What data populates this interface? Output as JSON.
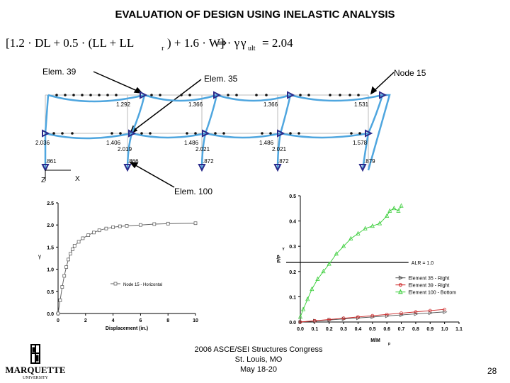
{
  "slide": {
    "title": "EVALUATION OF DESIGN USING INELASTIC ANALYSIS",
    "formula": {
      "lhs": "[1.2 · DL + 0.5 · (LL + LL",
      "lhs_sub": "r",
      "rhs": ") + 1.6 · W] · γ",
      "arrow": "⇒",
      "gamma": "γ",
      "gamma_sub": "ult",
      "result": "= 2.04"
    },
    "page_number": "28"
  },
  "frame": {
    "callouts": {
      "elem39": "Elem. 39",
      "elem35": "Elem. 35",
      "node15": "Node 15",
      "elem100": "Elem. 100"
    },
    "values": [
      "1.292",
      "1.366",
      "1.366",
      "1.531",
      "2.036",
      "1.406",
      "2.019",
      "1.486",
      "2.021",
      "1.486",
      "2.021",
      "1.578",
      ".861",
      ".866",
      ".872",
      ".872",
      ".879"
    ],
    "axes": {
      "z": "Z",
      "x": "X"
    }
  },
  "left_chart": {
    "chart_data": {
      "type": "line",
      "xlabel": "Displacement (in.)",
      "ylabel": "γ",
      "xlim": [
        0,
        10
      ],
      "ylim": [
        0.0,
        2.5
      ],
      "xticks": [
        "0",
        "2",
        "4",
        "6",
        "8",
        "10"
      ],
      "yticks": [
        "0.0",
        "0.5",
        "1.0",
        "1.5",
        "2.0",
        "2.5"
      ],
      "legend": "Node 15 - Horizontal",
      "legend_position": "bottom-right",
      "series": [
        {
          "name": "Node 15 - Horizontal",
          "x": [
            0,
            0.15,
            0.3,
            0.45,
            0.6,
            0.75,
            0.9,
            1.05,
            1.2,
            1.5,
            1.8,
            2.2,
            2.6,
            3.0,
            3.5,
            4.0,
            4.5,
            5.0,
            6.0,
            7.0,
            8.0,
            10.0
          ],
          "y": [
            0,
            0.3,
            0.6,
            0.85,
            1.05,
            1.22,
            1.35,
            1.45,
            1.53,
            1.62,
            1.7,
            1.77,
            1.83,
            1.88,
            1.92,
            1.95,
            1.97,
            1.98,
            2.0,
            2.02,
            2.03,
            2.04
          ]
        }
      ]
    }
  },
  "right_chart": {
    "chart_data": {
      "type": "line",
      "xlabel": "M/M",
      "xlabel_sub": "p",
      "ylabel": "P/P",
      "ylabel_sub": "Y",
      "xlim": [
        0.0,
        1.1
      ],
      "ylim": [
        0.0,
        0.5
      ],
      "xticks": [
        "0.0",
        "0.1",
        "0.2",
        "0.3",
        "0.4",
        "0.5",
        "0.6",
        "0.7",
        "0.8",
        "0.9",
        "1.0",
        "1.1"
      ],
      "yticks": [
        "0.0",
        "0.1",
        "0.2",
        "0.3",
        "0.4",
        "0.5"
      ],
      "annotation": "ALR = 1.0",
      "annotation_y": 0.236,
      "legend_position": "right",
      "series": [
        {
          "name": "Element 35 - Right",
          "color": "#555555",
          "x": [
            0.0,
            0.1,
            0.2,
            0.3,
            0.4,
            0.5,
            0.6,
            0.7,
            0.8,
            0.9,
            1.0
          ],
          "y": [
            0.0,
            0.004,
            0.008,
            0.012,
            0.016,
            0.02,
            0.024,
            0.028,
            0.032,
            0.036,
            0.04
          ]
        },
        {
          "name": "Element 39 - Right",
          "color": "#cc2222",
          "x": [
            0.0,
            0.1,
            0.2,
            0.3,
            0.4,
            0.5,
            0.6,
            0.7,
            0.8,
            0.9,
            1.0
          ],
          "y": [
            0.0,
            0.005,
            0.01,
            0.015,
            0.02,
            0.025,
            0.03,
            0.035,
            0.04,
            0.045,
            0.05
          ]
        },
        {
          "name": "Element 100 - Bottom",
          "color": "#33cc33",
          "x": [
            0.0,
            0.02,
            0.05,
            0.08,
            0.12,
            0.16,
            0.2,
            0.25,
            0.3,
            0.35,
            0.4,
            0.45,
            0.5,
            0.55,
            0.6,
            0.62,
            0.65,
            0.68,
            0.7
          ],
          "y": [
            0.02,
            0.05,
            0.09,
            0.13,
            0.17,
            0.2,
            0.23,
            0.27,
            0.3,
            0.33,
            0.35,
            0.37,
            0.38,
            0.39,
            0.42,
            0.44,
            0.45,
            0.44,
            0.46
          ]
        }
      ]
    }
  },
  "footer": {
    "line1": "2006 ASCE/SEI Structures Congress",
    "line2": "St. Louis, MO",
    "line3": "May 18-20"
  },
  "logo": {
    "text1": "MARQUETTE",
    "text2": "UNIVERSITY"
  }
}
